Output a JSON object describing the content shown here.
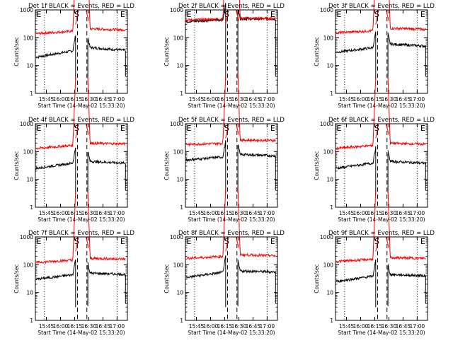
{
  "figure": {
    "colors": {
      "events": "#000000",
      "lld": "#ff0000",
      "background": "#ffffff"
    }
  },
  "chart_data": [
    {
      "type": "line",
      "title": "Det 1f BLACK = Events, RED = LLD",
      "xlabel": "Start Time (14-May-02 15:33:20)",
      "ylabel": "Counts/sec",
      "xticks": [
        "15:45",
        "16:00",
        "16:15",
        "16:30",
        "16:45",
        "17:00"
      ],
      "yscale": "log",
      "ylim": [
        1,
        1000
      ],
      "yticks": [
        "1",
        "10",
        "100",
        "1000"
      ],
      "markers": [
        "S",
        "E"
      ],
      "series": [
        {
          "name": "Events",
          "color": "#000000",
          "segments": [
            {
              "start": "15:34",
              "end": "16:16",
              "level_start": 20,
              "level_end": 35
            },
            {
              "start": "16:29",
              "end": "17:09",
              "level_start": 45,
              "level_end": 35
            }
          ]
        },
        {
          "name": "LLD",
          "color": "#ff0000",
          "segments": [
            {
              "start": "15:34",
              "end": "16:16",
              "level_start": 140,
              "level_end": 175
            },
            {
              "start": "16:29",
              "end": "17:09",
              "level_start": 210,
              "level_end": 190
            }
          ]
        }
      ]
    },
    {
      "type": "line",
      "title": "Det 2f BLACK = Events, RED = LLD",
      "xlabel": "Start Time (14-May-02 15:33:20)",
      "ylabel": "Counts/sec",
      "xticks": [
        "15:45",
        "16:00",
        "16:15",
        "16:30",
        "16:45",
        "17:00"
      ],
      "yscale": "log",
      "ylim": [
        1,
        1000
      ],
      "yticks": [
        "1",
        "10",
        "100",
        "1000"
      ],
      "markers": [
        "S",
        "E"
      ],
      "series": [
        {
          "name": "Events",
          "color": "#000000",
          "segments": [
            {
              "start": "15:34",
              "end": "16:16",
              "level_start": 380,
              "level_end": 450
            },
            {
              "start": "16:29",
              "end": "17:09",
              "level_start": 480,
              "level_end": 470
            }
          ]
        },
        {
          "name": "LLD",
          "color": "#ff0000",
          "segments": [
            {
              "start": "15:34",
              "end": "16:16",
              "level_start": 430,
              "level_end": 480
            },
            {
              "start": "16:29",
              "end": "17:09",
              "level_start": 500,
              "level_end": 500
            }
          ]
        }
      ]
    },
    {
      "type": "line",
      "title": "Det 3f BLACK = Events, RED = LLD",
      "xlabel": "Start Time (14-May-02 15:33:20)",
      "ylabel": "Counts/sec",
      "xticks": [
        "15:45",
        "16:00",
        "16:15",
        "16:30",
        "16:45",
        "17:00"
      ],
      "yscale": "log",
      "ylim": [
        1,
        1000
      ],
      "yticks": [
        "1",
        "10",
        "100",
        "1000"
      ],
      "markers": [
        "S",
        "E"
      ],
      "series": [
        {
          "name": "Events",
          "color": "#000000",
          "segments": [
            {
              "start": "15:34",
              "end": "16:16",
              "level_start": 30,
              "level_end": 45
            },
            {
              "start": "16:29",
              "end": "17:09",
              "level_start": 60,
              "level_end": 50
            }
          ]
        },
        {
          "name": "LLD",
          "color": "#ff0000",
          "segments": [
            {
              "start": "15:34",
              "end": "16:16",
              "level_start": 150,
              "level_end": 180
            },
            {
              "start": "16:29",
              "end": "17:09",
              "level_start": 220,
              "level_end": 200
            }
          ]
        }
      ]
    },
    {
      "type": "line",
      "title": "Det 4f BLACK = Events, RED = LLD",
      "xlabel": "Start Time (14-May-02 15:33:20)",
      "ylabel": "Counts/sec",
      "xticks": [
        "15:45",
        "16:00",
        "16:15",
        "16:30",
        "16:45",
        "17:00"
      ],
      "yscale": "log",
      "ylim": [
        1,
        1000
      ],
      "yticks": [
        "1",
        "10",
        "100",
        "1000"
      ],
      "markers": [
        "S",
        "E"
      ],
      "series": [
        {
          "name": "Events",
          "color": "#000000",
          "segments": [
            {
              "start": "15:34",
              "end": "16:16",
              "level_start": 25,
              "level_end": 40
            },
            {
              "start": "16:29",
              "end": "17:09",
              "level_start": 45,
              "level_end": 38
            }
          ]
        },
        {
          "name": "LLD",
          "color": "#ff0000",
          "segments": [
            {
              "start": "15:34",
              "end": "16:16",
              "level_start": 130,
              "level_end": 170
            },
            {
              "start": "16:29",
              "end": "17:09",
              "level_start": 200,
              "level_end": 190
            }
          ]
        }
      ]
    },
    {
      "type": "line",
      "title": "Det 5f BLACK = Events, RED = LLD",
      "xlabel": "Start Time (14-May-02 15:33:20)",
      "ylabel": "Counts/sec",
      "xticks": [
        "15:45",
        "16:00",
        "16:15",
        "16:30",
        "16:45",
        "17:00"
      ],
      "yscale": "log",
      "ylim": [
        1,
        1000
      ],
      "yticks": [
        "1",
        "10",
        "100",
        "1000"
      ],
      "markers": [
        "S",
        "E"
      ],
      "series": [
        {
          "name": "Events",
          "color": "#000000",
          "segments": [
            {
              "start": "15:34",
              "end": "16:16",
              "level_start": 50,
              "level_end": 65
            },
            {
              "start": "16:29",
              "end": "17:09",
              "level_start": 80,
              "level_end": 70
            }
          ]
        },
        {
          "name": "LLD",
          "color": "#ff0000",
          "segments": [
            {
              "start": "15:34",
              "end": "16:16",
              "level_start": 180,
              "level_end": 200
            },
            {
              "start": "16:29",
              "end": "17:09",
              "level_start": 260,
              "level_end": 250
            }
          ]
        }
      ]
    },
    {
      "type": "line",
      "title": "Det 6f BLACK = Events, RED = LLD",
      "xlabel": "Start Time (14-May-02 15:33:20)",
      "ylabel": "Counts/sec",
      "xticks": [
        "15:45",
        "16:00",
        "16:15",
        "16:30",
        "16:45",
        "17:00"
      ],
      "yscale": "log",
      "ylim": [
        1,
        1000
      ],
      "yticks": [
        "1",
        "10",
        "100",
        "1000"
      ],
      "markers": [
        "S",
        "E"
      ],
      "series": [
        {
          "name": "Events",
          "color": "#000000",
          "segments": [
            {
              "start": "15:34",
              "end": "16:16",
              "level_start": 25,
              "level_end": 40
            },
            {
              "start": "16:29",
              "end": "17:09",
              "level_start": 45,
              "level_end": 38
            }
          ]
        },
        {
          "name": "LLD",
          "color": "#ff0000",
          "segments": [
            {
              "start": "15:34",
              "end": "16:16",
              "level_start": 130,
              "level_end": 170
            },
            {
              "start": "16:29",
              "end": "17:09",
              "level_start": 200,
              "level_end": 185
            }
          ]
        }
      ]
    },
    {
      "type": "line",
      "title": "Det 7f BLACK = Events, RED = LLD",
      "xlabel": "Start Time (14-May-02 15:33:20)",
      "ylabel": "Counts/sec",
      "xticks": [
        "15:45",
        "16:00",
        "16:15",
        "16:30",
        "16:45",
        "17:00"
      ],
      "yscale": "log",
      "ylim": [
        1,
        1000
      ],
      "yticks": [
        "1",
        "10",
        "100",
        "1000"
      ],
      "markers": [
        "S",
        "E"
      ],
      "series": [
        {
          "name": "Events",
          "color": "#000000",
          "segments": [
            {
              "start": "15:34",
              "end": "16:16",
              "level_start": 30,
              "level_end": 45
            },
            {
              "start": "16:29",
              "end": "17:09",
              "level_start": 50,
              "level_end": 45
            }
          ]
        },
        {
          "name": "LLD",
          "color": "#ff0000",
          "segments": [
            {
              "start": "15:34",
              "end": "16:16",
              "level_start": 120,
              "level_end": 150
            },
            {
              "start": "16:29",
              "end": "17:09",
              "level_start": 170,
              "level_end": 160
            }
          ]
        }
      ]
    },
    {
      "type": "line",
      "title": "Det 8f BLACK = Events, RED = LLD",
      "xlabel": "Start Time (14-May-02 15:33:20)",
      "ylabel": "Counts/sec",
      "xticks": [
        "15:45",
        "16:00",
        "16:15",
        "16:30",
        "16:45",
        "17:00"
      ],
      "yscale": "log",
      "ylim": [
        1,
        1000
      ],
      "yticks": [
        "1",
        "10",
        "100",
        "1000"
      ],
      "markers": [
        "S",
        "E"
      ],
      "series": [
        {
          "name": "Events",
          "color": "#000000",
          "segments": [
            {
              "start": "15:34",
              "end": "16:16",
              "level_start": 35,
              "level_end": 55
            },
            {
              "start": "16:29",
              "end": "17:09",
              "level_start": 60,
              "level_end": 55
            }
          ]
        },
        {
          "name": "LLD",
          "color": "#ff0000",
          "segments": [
            {
              "start": "15:34",
              "end": "16:16",
              "level_start": 170,
              "level_end": 200
            },
            {
              "start": "16:29",
              "end": "17:09",
              "level_start": 230,
              "level_end": 210
            }
          ]
        }
      ]
    },
    {
      "type": "line",
      "title": "Det 9f BLACK = Events, RED = LLD",
      "xlabel": "Start Time (14-May-02 15:33:20)",
      "ylabel": "Counts/sec",
      "xticks": [
        "15:45",
        "16:00",
        "16:15",
        "16:30",
        "16:45",
        "17:00"
      ],
      "yscale": "log",
      "ylim": [
        1,
        1000
      ],
      "yticks": [
        "1",
        "10",
        "100",
        "1000"
      ],
      "markers": [
        "S",
        "E"
      ],
      "series": [
        {
          "name": "Events",
          "color": "#000000",
          "segments": [
            {
              "start": "15:34",
              "end": "16:16",
              "level_start": 25,
              "level_end": 40
            },
            {
              "start": "16:29",
              "end": "17:09",
              "level_start": 45,
              "level_end": 40
            }
          ]
        },
        {
          "name": "LLD",
          "color": "#ff0000",
          "segments": [
            {
              "start": "15:34",
              "end": "16:16",
              "level_start": 130,
              "level_end": 160
            },
            {
              "start": "16:29",
              "end": "17:09",
              "level_start": 180,
              "level_end": 170
            }
          ]
        }
      ]
    }
  ]
}
